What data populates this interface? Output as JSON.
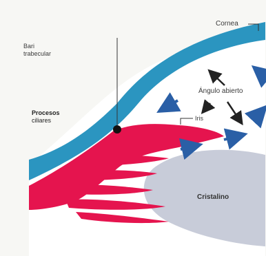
{
  "labels": {
    "cornea": "Cornea",
    "iris_base_line1": "Bari",
    "iris_base_line2": "trabecular",
    "ciliary_line1": "Procesos",
    "ciliary_line2": "ciliares",
    "open_angle": "Ángulo abierto",
    "iris": "Iris",
    "lens": "Cristalino"
  },
  "colors": {
    "background": "#f7f7f4",
    "cornea": "#2b95c0",
    "iris_ciliary": "#e5144e",
    "lens": "#c8ccd9",
    "arrow_blue": "#2a5fa6",
    "arrow_dark": "#222222"
  }
}
